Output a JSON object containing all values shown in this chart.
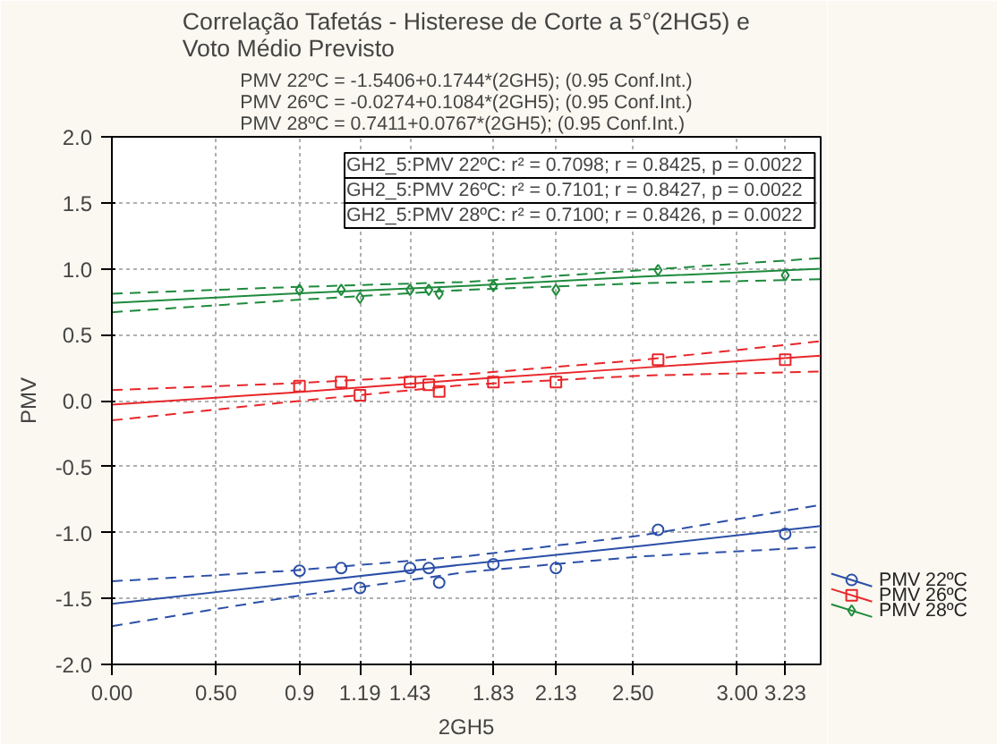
{
  "chart_data": {
    "type": "scatter",
    "title": "Correlação Tafetás - Histerese de Corte a 5°(2HG5) e\nVoto Médio Previsto",
    "subtitle": "PMV 22ºC = -1.5406+0.1744*(2GH5); (0.95 Conf.Int.)\nPMV 26ºC = -0.0274+0.1084*(2GH5); (0.95 Conf.Int.)\nPMV 28ºC = 0.7411+0.0767*(2GH5); (0.95 Conf.Int.)",
    "xlabel": "2GH5",
    "ylabel": "PMV",
    "annotations": [
      "GH2_5:PMV 22ºC:  r² = 0.7098;  r = 0.8425, p = 0.0022",
      "GH2_5:PMV 26ºC:  r² = 0.7101;  r = 0.8427, p = 0.0022",
      "GH2_5:PMV 28ºC:  r² = 0.7100;  r = 0.8426, p = 0.0022"
    ],
    "x": [
      0.9,
      1.1,
      1.19,
      1.43,
      1.52,
      1.57,
      1.83,
      2.13,
      2.62,
      3.23
    ],
    "series": [
      {
        "name": "PMV 22ºC",
        "color": "#2b4fa8",
        "marker": "circle",
        "values": [
          -1.29,
          -1.27,
          -1.42,
          -1.27,
          -1.27,
          -1.38,
          -1.24,
          -1.27,
          -0.98,
          -1.01
        ]
      },
      {
        "name": "PMV 26ºC",
        "color": "#e8262a",
        "marker": "square",
        "values": [
          0.11,
          0.14,
          0.04,
          0.14,
          0.12,
          0.07,
          0.14,
          0.14,
          0.31,
          0.31
        ]
      },
      {
        "name": "PMV 28ºC",
        "color": "#1e8a3c",
        "marker": "diamond",
        "values": [
          0.84,
          0.84,
          0.78,
          0.84,
          0.84,
          0.81,
          0.87,
          0.84,
          0.99,
          0.95
        ]
      },
      {
        "type": "line",
        "color": "#2b4fa8",
        "x": [
          0,
          0.85,
          1.7,
          2.55,
          3.4
        ],
        "values": [
          -1.54,
          -1.39,
          -1.24,
          -1.1,
          -0.95
        ]
      },
      {
        "type": "line",
        "line_style": "dashed",
        "color": "#2b4fa8",
        "x": [
          0,
          0.85,
          1.7,
          2.55,
          3.4
        ],
        "values": [
          -1.71,
          -1.49,
          -1.3,
          -1.18,
          -1.11
        ]
      },
      {
        "type": "line",
        "line_style": "dashed",
        "color": "#2b4fa8",
        "x": [
          0,
          0.85,
          1.7,
          2.55,
          3.4
        ],
        "values": [
          -1.37,
          -1.29,
          -1.18,
          -1.02,
          -0.79
        ]
      },
      {
        "type": "line",
        "color": "#e8262a",
        "x": [
          0,
          0.85,
          1.7,
          2.55,
          3.4
        ],
        "values": [
          -0.03,
          0.06,
          0.16,
          0.25,
          0.34
        ]
      },
      {
        "type": "line",
        "line_style": "dashed",
        "color": "#e8262a",
        "x": [
          0,
          0.85,
          1.7,
          2.55,
          3.4
        ],
        "values": [
          -0.15,
          -0.01,
          0.12,
          0.19,
          0.22
        ]
      },
      {
        "type": "line",
        "line_style": "dashed",
        "color": "#e8262a",
        "x": [
          0,
          0.85,
          1.7,
          2.55,
          3.4
        ],
        "values": [
          0.08,
          0.13,
          0.2,
          0.31,
          0.45
        ]
      },
      {
        "type": "line",
        "color": "#1e8a3c",
        "x": [
          0,
          0.85,
          1.7,
          2.55,
          3.4
        ],
        "values": [
          0.74,
          0.81,
          0.87,
          0.94,
          1.0
        ]
      },
      {
        "type": "line",
        "line_style": "dashed",
        "color": "#1e8a3c",
        "x": [
          0,
          0.85,
          1.7,
          2.55,
          3.4
        ],
        "values": [
          0.67,
          0.76,
          0.84,
          0.89,
          0.92
        ]
      },
      {
        "type": "line",
        "line_style": "dashed",
        "color": "#1e8a3c",
        "x": [
          0,
          0.85,
          1.7,
          2.55,
          3.4
        ],
        "values": [
          0.81,
          0.86,
          0.9,
          0.99,
          1.08
        ]
      }
    ],
    "xlim": [
      0,
      3.4
    ],
    "xticks": [
      {
        "value": 0,
        "label": "0.00"
      },
      {
        "value": 0.5,
        "label": "0.50"
      },
      0.9,
      1.19,
      1.43,
      1.83,
      2.13,
      {
        "value": 2.5,
        "label": "2.50"
      },
      {
        "value": 3.0,
        "label": "3.00"
      },
      3.23
    ],
    "ylim": [
      -2,
      2
    ],
    "yticks": [
      {
        "value": -2,
        "label": "-2.0"
      },
      -1.5,
      {
        "value": -1,
        "label": "-1.0"
      },
      -0.5,
      {
        "value": 0,
        "label": "0.0"
      },
      0.5,
      {
        "value": 1,
        "label": "1.0"
      },
      1.5,
      {
        "value": 2,
        "label": "2.0"
      }
    ],
    "grid": true,
    "legend": "bottom right"
  }
}
